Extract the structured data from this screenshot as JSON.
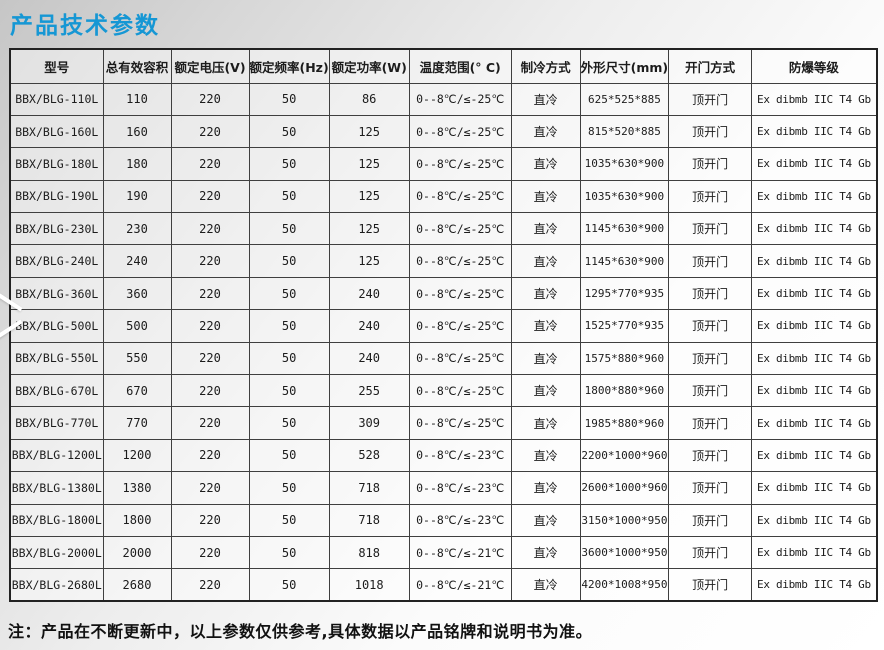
{
  "page": {
    "title": "产品技术参数",
    "note": "注：产品在不断更新中，以上参数仅供参考,具体数据以产品铭牌和说明书为准。"
  },
  "colors": {
    "title_accent": "#1697d4",
    "table_border": "#222222",
    "text": "#1c1c1c"
  },
  "table": {
    "columns": [
      "型号",
      "总有效容积",
      "额定电压(V)",
      "额定频率(Hz)",
      "额定功率(W)",
      "温度范围(° C)",
      "制冷方式",
      "外形尺寸(mm)",
      "开门方式",
      "防爆等级"
    ],
    "rows": [
      [
        "BBX/BLG-110L",
        "110",
        "220",
        "50",
        "86",
        "0--8℃/≤-25℃",
        "直冷",
        "625*525*885",
        "顶开门",
        "Ex dibmb IIC T4 Gb"
      ],
      [
        "BBX/BLG-160L",
        "160",
        "220",
        "50",
        "125",
        "0--8℃/≤-25℃",
        "直冷",
        "815*520*885",
        "顶开门",
        "Ex dibmb IIC T4 Gb"
      ],
      [
        "BBX/BLG-180L",
        "180",
        "220",
        "50",
        "125",
        "0--8℃/≤-25℃",
        "直冷",
        "1035*630*900",
        "顶开门",
        "Ex dibmb IIC T4 Gb"
      ],
      [
        "BBX/BLG-190L",
        "190",
        "220",
        "50",
        "125",
        "0--8℃/≤-25℃",
        "直冷",
        "1035*630*900",
        "顶开门",
        "Ex dibmb IIC T4 Gb"
      ],
      [
        "BBX/BLG-230L",
        "230",
        "220",
        "50",
        "125",
        "0--8℃/≤-25℃",
        "直冷",
        "1145*630*900",
        "顶开门",
        "Ex dibmb IIC T4 Gb"
      ],
      [
        "BBX/BLG-240L",
        "240",
        "220",
        "50",
        "125",
        "0--8℃/≤-25℃",
        "直冷",
        "1145*630*900",
        "顶开门",
        "Ex dibmb IIC T4 Gb"
      ],
      [
        "BBX/BLG-360L",
        "360",
        "220",
        "50",
        "240",
        "0--8℃/≤-25℃",
        "直冷",
        "1295*770*935",
        "顶开门",
        "Ex dibmb IIC T4 Gb"
      ],
      [
        "BBX/BLG-500L",
        "500",
        "220",
        "50",
        "240",
        "0--8℃/≤-25℃",
        "直冷",
        "1525*770*935",
        "顶开门",
        "Ex dibmb IIC T4 Gb"
      ],
      [
        "BBX/BLG-550L",
        "550",
        "220",
        "50",
        "240",
        "0--8℃/≤-25℃",
        "直冷",
        "1575*880*960",
        "顶开门",
        "Ex dibmb IIC T4 Gb"
      ],
      [
        "BBX/BLG-670L",
        "670",
        "220",
        "50",
        "255",
        "0--8℃/≤-25℃",
        "直冷",
        "1800*880*960",
        "顶开门",
        "Ex dibmb IIC T4 Gb"
      ],
      [
        "BBX/BLG-770L",
        "770",
        "220",
        "50",
        "309",
        "0--8℃/≤-25℃",
        "直冷",
        "1985*880*960",
        "顶开门",
        "Ex dibmb IIC T4 Gb"
      ],
      [
        "BBX/BLG-1200L",
        "1200",
        "220",
        "50",
        "528",
        "0--8℃/≤-23℃",
        "直冷",
        "2200*1000*960",
        "顶开门",
        "Ex dibmb IIC T4 Gb"
      ],
      [
        "BBX/BLG-1380L",
        "1380",
        "220",
        "50",
        "718",
        "0--8℃/≤-23℃",
        "直冷",
        "2600*1000*960",
        "顶开门",
        "Ex dibmb IIC T4 Gb"
      ],
      [
        "BBX/BLG-1800L",
        "1800",
        "220",
        "50",
        "718",
        "0--8℃/≤-23℃",
        "直冷",
        "3150*1000*950",
        "顶开门",
        "Ex dibmb IIC T4 Gb"
      ],
      [
        "BBX/BLG-2000L",
        "2000",
        "220",
        "50",
        "818",
        "0--8℃/≤-21℃",
        "直冷",
        "3600*1000*950",
        "顶开门",
        "Ex dibmb IIC T4 Gb"
      ],
      [
        "BBX/BLG-2680L",
        "2680",
        "220",
        "50",
        "1018",
        "0--8℃/≤-21℃",
        "直冷",
        "4200*1008*950",
        "顶开门",
        "Ex dibmb IIC T4 Gb"
      ]
    ]
  }
}
